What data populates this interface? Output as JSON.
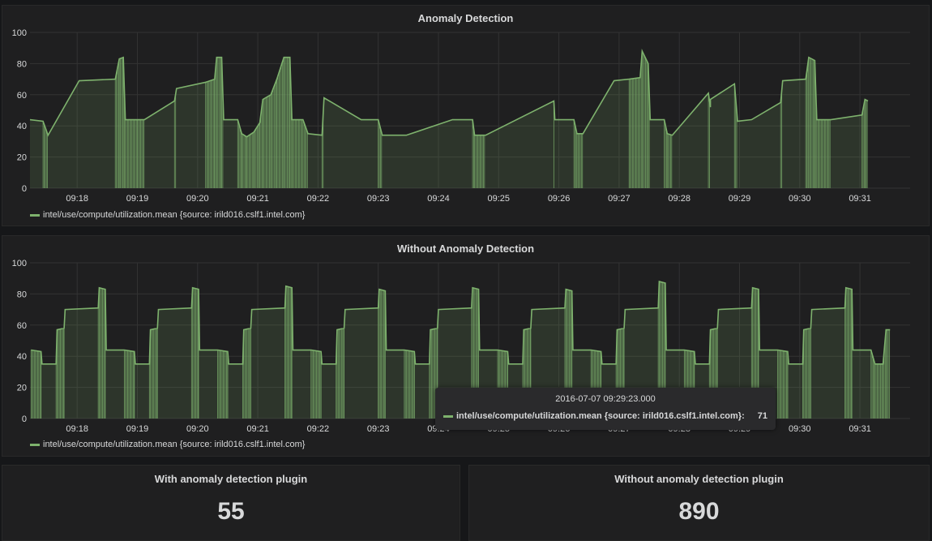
{
  "theme": {
    "series_color": "#7eb26d",
    "grid_color": "#333333",
    "bg": "#1f1f20"
  },
  "charts": [
    {
      "title": "Anomaly Detection",
      "legend": "intel/use/compute/utilization.mean {source: irild016.cslf1.intel.com}"
    },
    {
      "title": "Without Anomaly Detection",
      "legend": "intel/use/compute/utilization.mean {source: irild016.cslf1.intel.com}"
    }
  ],
  "tooltip": {
    "time": "2016-07-07 09:29:23.000",
    "series": "intel/use/compute/utilization.mean {source: irild016.cslf1.intel.com}:",
    "value": "71"
  },
  "stats": [
    {
      "title": "With anomaly detection plugin",
      "value": "55"
    },
    {
      "title": "Without anomaly detection plugin",
      "value": "890"
    }
  ],
  "chart_data": [
    {
      "type": "area",
      "title": "Anomaly Detection",
      "xlabel": "",
      "ylabel": "",
      "ylim": [
        0,
        100
      ],
      "yticks": [
        0,
        20,
        40,
        60,
        80,
        100
      ],
      "xlim": [
        "09:17:13",
        "09:31:50"
      ],
      "xticks": [
        "09:18",
        "09:19",
        "09:20",
        "09:21",
        "09:22",
        "09:23",
        "09:24",
        "09:25",
        "09:26",
        "09:27",
        "09:28",
        "09:29",
        "09:30",
        "09:31"
      ],
      "series": [
        {
          "name": "intel/use/compute/utilization.mean {source: irild016.cslf1.intel.com}",
          "points_seconds_after_0917": [
            [
              13,
              44
            ],
            [
              26,
              43
            ],
            [
              31,
              34
            ],
            [
              62,
              69
            ],
            [
              98,
              70
            ],
            [
              102,
              83
            ],
            [
              106,
              84
            ],
            [
              108,
              44
            ],
            [
              120,
              44
            ],
            [
              127,
              44
            ],
            [
              157,
              56
            ],
            [
              159,
              64
            ],
            [
              188,
              68
            ],
            [
              197,
              70
            ],
            [
              199,
              84
            ],
            [
              204,
              84
            ],
            [
              206,
              44
            ],
            [
              220,
              44
            ],
            [
              224,
              35
            ],
            [
              229,
              33
            ],
            [
              236,
              36
            ],
            [
              242,
              42
            ],
            [
              245,
              57
            ],
            [
              253,
              60
            ],
            [
              259,
              70
            ],
            [
              266,
              84
            ],
            [
              272,
              84
            ],
            [
              274,
              44
            ],
            [
              285,
              44
            ],
            [
              290,
              35
            ],
            [
              304,
              34
            ],
            [
              306,
              58
            ],
            [
              343,
              44
            ],
            [
              360,
              44
            ],
            [
              364,
              34
            ],
            [
              388,
              34
            ],
            [
              434,
              44
            ],
            [
              454,
              44
            ],
            [
              456,
              34
            ],
            [
              467,
              34
            ],
            [
              535,
              56
            ],
            [
              536,
              44
            ],
            [
              555,
              44
            ],
            [
              558,
              35
            ],
            [
              564,
              35
            ],
            [
              595,
              69
            ],
            [
              610,
              70
            ],
            [
              621,
              71
            ],
            [
              623,
              88
            ],
            [
              629,
              80
            ],
            [
              631,
              44
            ],
            [
              645,
              44
            ],
            [
              648,
              35
            ],
            [
              653,
              34
            ],
            [
              689,
              61
            ],
            [
              691,
              52
            ],
            [
              691,
              57
            ],
            [
              715,
              67
            ],
            [
              718,
              43
            ],
            [
              732,
              44
            ],
            [
              761,
              55
            ],
            [
              763,
              69
            ],
            [
              786,
              70
            ],
            [
              789,
              84
            ],
            [
              795,
              82
            ],
            [
              797,
              44
            ],
            [
              808,
              44
            ],
            [
              811,
              44
            ],
            [
              842,
              47
            ],
            [
              845,
              57
            ],
            [
              848,
              56
            ]
          ]
        }
      ]
    },
    {
      "type": "area",
      "title": "Without Anomaly Detection",
      "xlabel": "",
      "ylabel": "",
      "ylim": [
        0,
        100
      ],
      "yticks": [
        0,
        20,
        40,
        60,
        80,
        100
      ],
      "xlim": [
        "09:17:13",
        "09:31:50"
      ],
      "xticks": [
        "09:18",
        "09:19",
        "09:20",
        "09:21",
        "09:22",
        "09:23",
        "09:24",
        "09:25",
        "09:26",
        "09:27",
        "09:28",
        "09:29",
        "09:30",
        "09:31"
      ],
      "pattern_note": "periodic load cycle ~93 s: 44 (10s) -> 35 (15s) -> 57 (8s) -> 70 (34s) -> 83 (7s)",
      "series": [
        {
          "name": "intel/use/compute/utilization.mean {source: irild016.cslf1.intel.com}",
          "cycle_start_seconds_after_0917": [
            14,
            107,
            200,
            293,
            386,
            479,
            572,
            665,
            758
          ],
          "cycle_levels": [
            44,
            35,
            57,
            70,
            83
          ],
          "peaks": [
            84,
            84,
            85,
            83,
            84,
            83,
            88,
            84,
            84
          ],
          "tail": [
            [
              851,
              44
            ],
            [
              855,
              35
            ],
            [
              863,
              35
            ],
            [
              866,
              57
            ],
            [
              870,
              57
            ]
          ]
        }
      ]
    }
  ]
}
